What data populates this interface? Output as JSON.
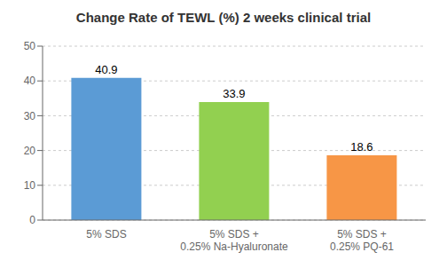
{
  "chart_data": {
    "type": "bar",
    "title": "Change Rate of TEWL (%) 2 weeks clinical trial",
    "categories": [
      "5% SDS",
      "5% SDS +\n0.25% Na-Hyaluronate",
      "5% SDS +\n0.25% PQ-61"
    ],
    "values": [
      40.9,
      33.9,
      18.6
    ],
    "colors": [
      "#5B9BD5",
      "#92D050",
      "#F79646"
    ],
    "ylim": [
      0,
      50
    ],
    "yticks": [
      0,
      10,
      20,
      30,
      40,
      50
    ],
    "grid": true,
    "data_labels": true
  }
}
